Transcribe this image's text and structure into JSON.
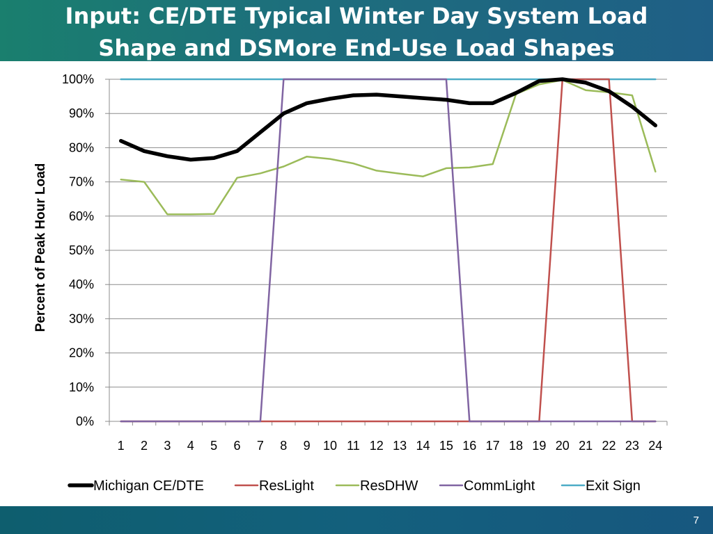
{
  "slide": {
    "title_line1": "Input: CE/DTE Typical Winter Day System Load",
    "title_line2": "Shape and DSMore End-Use Load Shapes",
    "page_number": "7"
  },
  "chart_data": {
    "type": "line",
    "title": "",
    "xlabel": "",
    "ylabel": "Percent of Peak Hour Load",
    "categories": [
      "1",
      "2",
      "3",
      "4",
      "5",
      "6",
      "7",
      "8",
      "9",
      "10",
      "11",
      "12",
      "13",
      "14",
      "15",
      "16",
      "17",
      "18",
      "19",
      "20",
      "21",
      "22",
      "23",
      "24"
    ],
    "ylim": [
      0,
      100
    ],
    "yticks": [
      0,
      10,
      20,
      30,
      40,
      50,
      60,
      70,
      80,
      90,
      100
    ],
    "ytick_labels": [
      "0%",
      "10%",
      "20%",
      "30%",
      "40%",
      "50%",
      "60%",
      "70%",
      "80%",
      "90%",
      "100%"
    ],
    "grid": true,
    "legend_position": "bottom",
    "series": [
      {
        "name": "Michigan CE/DTE",
        "color": "#000000",
        "values": [
          82,
          79,
          77.5,
          76.5,
          77,
          79,
          84.5,
          90,
          93,
          94.3,
          95.3,
          95.5,
          95,
          94.5,
          94,
          93,
          93,
          96,
          99.5,
          100,
          99,
          96.5,
          92,
          86.5
        ]
      },
      {
        "name": "ResLight",
        "color": "#c0504d",
        "values": [
          0,
          0,
          0,
          0,
          0,
          0,
          0,
          0,
          0,
          0,
          0,
          0,
          0,
          0,
          0,
          0,
          0,
          0,
          0,
          100,
          100,
          100,
          0,
          0
        ]
      },
      {
        "name": "ResDHW",
        "color": "#9bbb59",
        "values": [
          70.7,
          70,
          60.5,
          60.5,
          60.6,
          71.2,
          72.5,
          74.5,
          77.4,
          76.7,
          75.4,
          73.3,
          72.4,
          71.6,
          74,
          74.2,
          75.2,
          95.7,
          98.5,
          99.8,
          96.8,
          96.2,
          95.3,
          73
        ]
      },
      {
        "name": "CommLight",
        "color": "#8064a2",
        "values": [
          0,
          0,
          0,
          0,
          0,
          0,
          0,
          100,
          100,
          100,
          100,
          100,
          100,
          100,
          100,
          0,
          0,
          0,
          0,
          0,
          0,
          0,
          0,
          0
        ]
      },
      {
        "name": "Exit Sign",
        "color": "#4bacc6",
        "values": [
          100,
          100,
          100,
          100,
          100,
          100,
          100,
          100,
          100,
          100,
          100,
          100,
          100,
          100,
          100,
          100,
          100,
          100,
          100,
          100,
          100,
          100,
          100,
          100
        ]
      }
    ]
  }
}
